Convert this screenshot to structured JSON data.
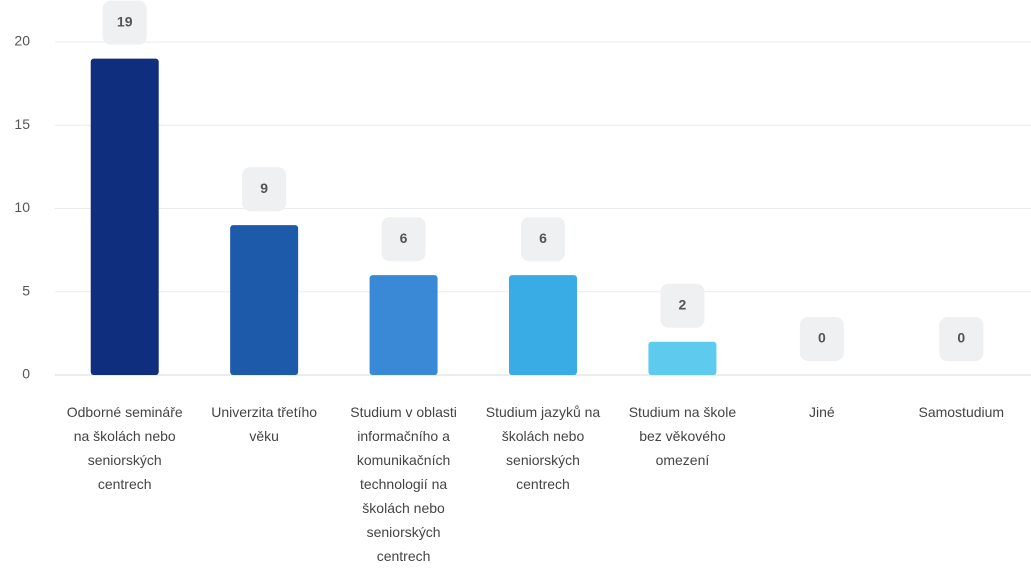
{
  "chart_data": {
    "type": "bar",
    "categories": [
      "Odborné semináře na školách nebo seniorských centrech",
      "Univerzita třetího věku",
      "Studium v oblasti informačního a komunikačních technologií na školách nebo seniorských centrech",
      "Studium jazyků na školách nebo seniorských centrech",
      "Studium na škole bez věkového omezení",
      "Jiné",
      "Samostudium"
    ],
    "values": [
      19,
      9,
      6,
      6,
      2,
      0,
      0
    ],
    "colors": [
      "#0f2e7e",
      "#1e5aaa",
      "#3989d7",
      "#39ace6",
      "#5ecbee",
      "#8fdcf3",
      "#b9e8f7"
    ],
    "ylim": [
      0,
      20
    ],
    "yticks": [
      0,
      5,
      10,
      15,
      20
    ],
    "grid": true
  }
}
